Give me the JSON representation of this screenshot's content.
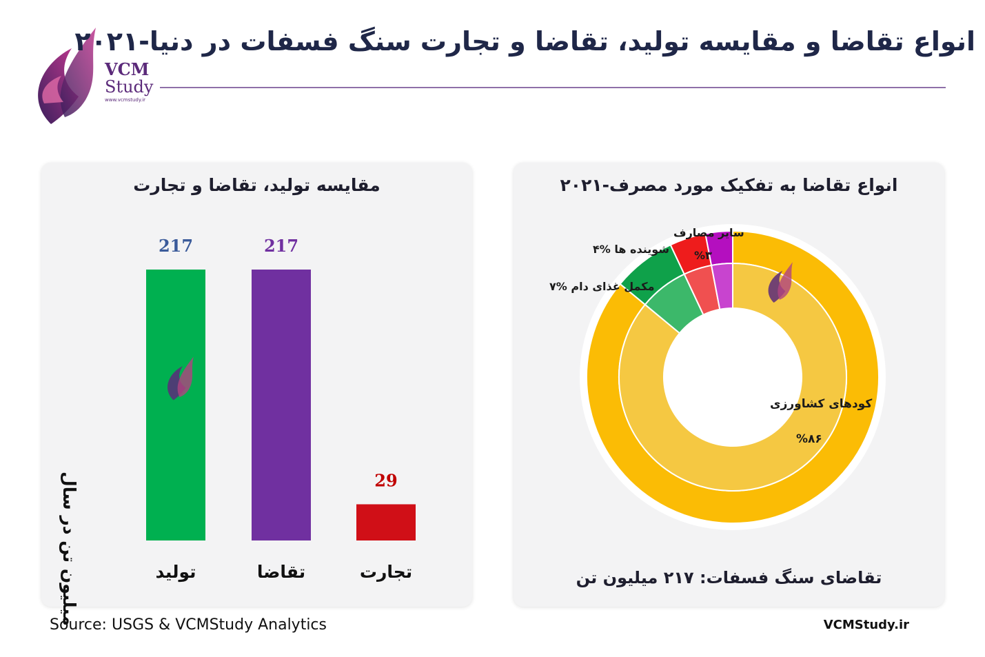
{
  "header": {
    "title": "انواع تقاضا و مقایسه تولید، تقاضا و تجارت سنگ فسفات در دنیا-۲۰۲۱",
    "logo_name": "VCM",
    "logo_sub": "Study",
    "logo_url": "www.vcmstudy.ir"
  },
  "colors": {
    "production": "#00b050",
    "demand": "#7030a0",
    "trade": "#d00f17",
    "fertilizer": "#fbbc05",
    "feed": "#0fa14a",
    "detergent": "#ee1c1c",
    "other": "#b40fbf",
    "title_navy": "#1f2748"
  },
  "chart_data": [
    {
      "type": "bar",
      "title": "مقایسه تولید، تقاضا و تجارت",
      "ylabel": "میلیون تن در سال",
      "xlabel": "",
      "categories": [
        "تولید",
        "تقاضا",
        "تجارت"
      ],
      "values": [
        217,
        217,
        29
      ],
      "value_labels": [
        "217",
        "217",
        "29"
      ],
      "ylim": [
        0,
        217
      ],
      "grid": false,
      "legend": "none"
    },
    {
      "type": "pie",
      "title": "انواع تقاضا به تفکیک مورد مصرف-۲۰۲۱",
      "slices": [
        {
          "label": "کودهای کشاورزی",
          "percent_label": "%۸۶",
          "value": 86
        },
        {
          "label": "مکمل غذای دام",
          "percent_label": "%۷",
          "value": 7
        },
        {
          "label": "شوینده ها",
          "percent_label": "%۴",
          "value": 4
        },
        {
          "label": "سایر مصارف",
          "percent_label": "%۳",
          "value": 3
        }
      ],
      "footer": "تقاضای سنگ فسفات: ۲۱۷ میلیون تن",
      "style": "donut"
    }
  ],
  "footer": {
    "source": "Source: USGS & VCMStudy Analytics",
    "site": "VCMStudy.ir"
  }
}
